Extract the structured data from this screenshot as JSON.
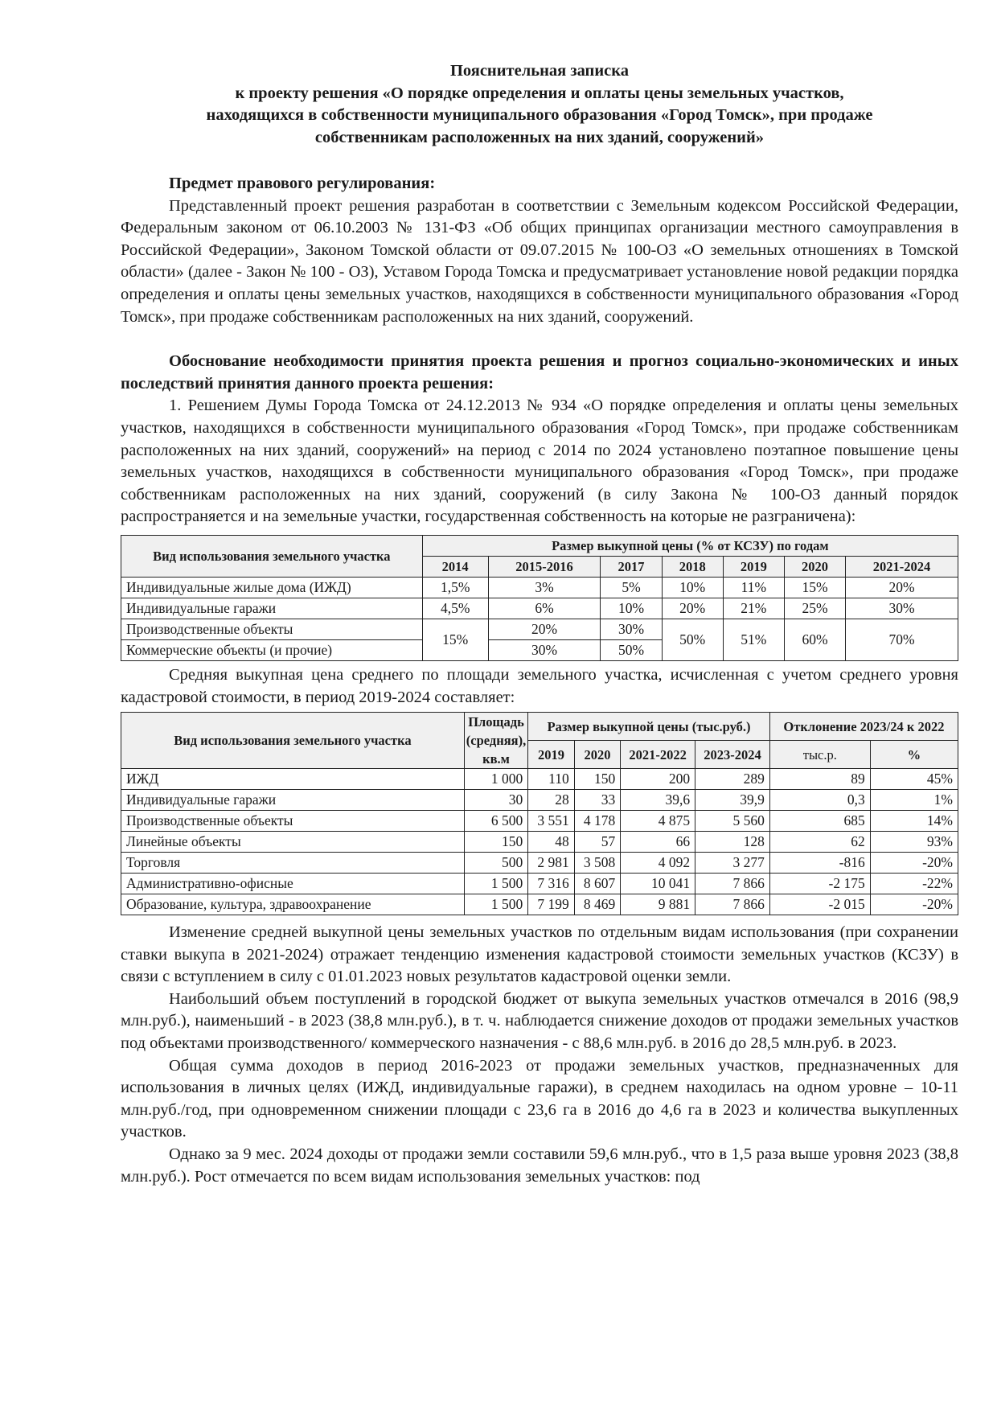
{
  "title": {
    "line1": "Пояснительная записка",
    "line2": "к проекту решения «О порядке определения и оплаты цены земельных участков,",
    "line3": "находящихся в собственности муниципального образования «Город Томск», при продаже",
    "line4": "собственникам расположенных на них зданий, сооружений»"
  },
  "section1": {
    "heading": "Предмет правового регулирования:",
    "text": "Представленный проект решения разработан в соответствии с Земельным кодексом Российской Федерации, Федеральным законом от 06.10.2003 № 131-ФЗ «Об общих принципах организации местного самоуправления в Российской Федерации», Законом Томской области от 09.07.2015 № 100-ОЗ «О земельных отношениях в Томской области» (далее - Закон № 100 - ОЗ), Уставом Города Томска и предусматривает установление новой редакции порядка определения и оплаты цены земельных участков, находящихся в собственности муниципального образования «Город Томск», при продаже собственникам расположенных на них зданий, сооружений."
  },
  "section2": {
    "heading": "Обоснование необходимости принятия проекта решения и прогноз социально-экономических и иных последствий принятия данного проекта решения:",
    "p1": "1. Решением Думы Города Томска от 24.12.2013 № 934 «О порядке определения и оплаты цены земельных участков, находящихся в собственности муниципального образования «Город Томск», при продаже собственникам расположенных на них зданий, сооружений» на период с 2014 по 2024 установлено поэтапное повышение цены земельных участков, находящихся в собственности муниципального образования «Город Томск», при продаже собственникам расположенных на них зданий, сооружений (в силу Закона № 100-ОЗ данный порядок распространяется и на земельные участки, государственная собственность на которые не разграничена):",
    "p2": "Средняя выкупная цена среднего по площади земельного участка, исчисленная с учетом среднего уровня кадастровой стоимости, в период 2019-2024 составляет:",
    "p3": "Изменение средней выкупной цены земельных участков по отдельным видам использования (при сохранении ставки выкупа в 2021-2024) отражает тенденцию изменения кадастровой стоимости земельных участков (КСЗУ) в связи с вступлением в силу с 01.01.2023 новых результатов кадастровой оценки земли.",
    "p4": "Наибольший объем поступлений в городской бюджет от выкупа земельных участков отмечался в 2016 (98,9 млн.руб.), наименьший - в 2023 (38,8 млн.руб.), в т. ч. наблюдается снижение доходов от продажи земельных участков под объектами производственного/ коммерческого назначения - с 88,6 млн.руб. в 2016 до 28,5 млн.руб. в 2023.",
    "p5": "Общая сумма доходов в период 2016-2023 от продажи земельных участков, предназначенных для использования в личных целях (ИЖД, индивидуальные гаражи), в среднем находилась на одном уровне – 10-11 млн.руб./год, при одновременном снижении площади с 23,6 га в 2016 до 4,6 га в 2023 и количества выкупленных участков.",
    "p6": "Однако за 9 мес. 2024 доходы от продажи земли составили 59,6 млн.руб., что в 1,5 раза выше уровня 2023 (38,8 млн.руб.). Рост отмечается по всем видам использования земельных участков: под"
  },
  "table1": {
    "col_type": "Вид использования земельного участка",
    "group": "Размер выкупной цены (% от КСЗУ) по годам",
    "years": [
      "2014",
      "2015-2016",
      "2017",
      "2018",
      "2019",
      "2020",
      "2021-2024"
    ],
    "rows": [
      {
        "name": "Индивидуальные жилые дома (ИЖД)",
        "v": [
          "1,5%",
          "3%",
          "5%",
          "10%",
          "11%",
          "15%",
          "20%"
        ]
      },
      {
        "name": "Индивидуальные гаражи",
        "v": [
          "4,5%",
          "6%",
          "10%",
          "20%",
          "21%",
          "25%",
          "30%"
        ]
      },
      {
        "name": "Производственные объекты",
        "v": [
          "15%",
          "20%",
          "30%",
          "50%",
          "51%",
          "60%",
          "70%"
        ]
      },
      {
        "name": "Коммерческие объекты (и прочие)",
        "v": [
          "30%",
          "50%"
        ]
      }
    ]
  },
  "table2": {
    "col_type": "Вид использования земельного участка",
    "col_area": "Площадь (средняя), кв.м",
    "group_price": "Размер выкупной цены (тыс.руб.)",
    "group_dev": "Отклонение 2023/24 к 2022",
    "years": [
      "2019",
      "2020",
      "2021-2022",
      "2023-2024"
    ],
    "dev_cols": [
      "тыс.р.",
      "%"
    ],
    "rows": [
      {
        "name": "ИЖД",
        "v": [
          "1 000",
          "110",
          "150",
          "200",
          "289",
          "89",
          "45%"
        ]
      },
      {
        "name": "Индивидуальные гаражи",
        "v": [
          "30",
          "28",
          "33",
          "39,6",
          "39,9",
          "0,3",
          "1%"
        ]
      },
      {
        "name": "Производственные объекты",
        "v": [
          "6 500",
          "3 551",
          "4 178",
          "4 875",
          "5 560",
          "685",
          "14%"
        ]
      },
      {
        "name": "Линейные объекты",
        "v": [
          "150",
          "48",
          "57",
          "66",
          "128",
          "62",
          "93%"
        ]
      },
      {
        "name": "Торговля",
        "v": [
          "500",
          "2 981",
          "3 508",
          "4 092",
          "3 277",
          "-816",
          "-20%"
        ]
      },
      {
        "name": "Административно-офисные",
        "v": [
          "1 500",
          "7 316",
          "8 607",
          "10 041",
          "7 866",
          "-2 175",
          "-22%"
        ]
      },
      {
        "name": "Образование, культура, здравоохранение",
        "v": [
          "1 500",
          "7 199",
          "8 469",
          "9 881",
          "7 866",
          "-2 015",
          "-20%"
        ]
      }
    ]
  }
}
